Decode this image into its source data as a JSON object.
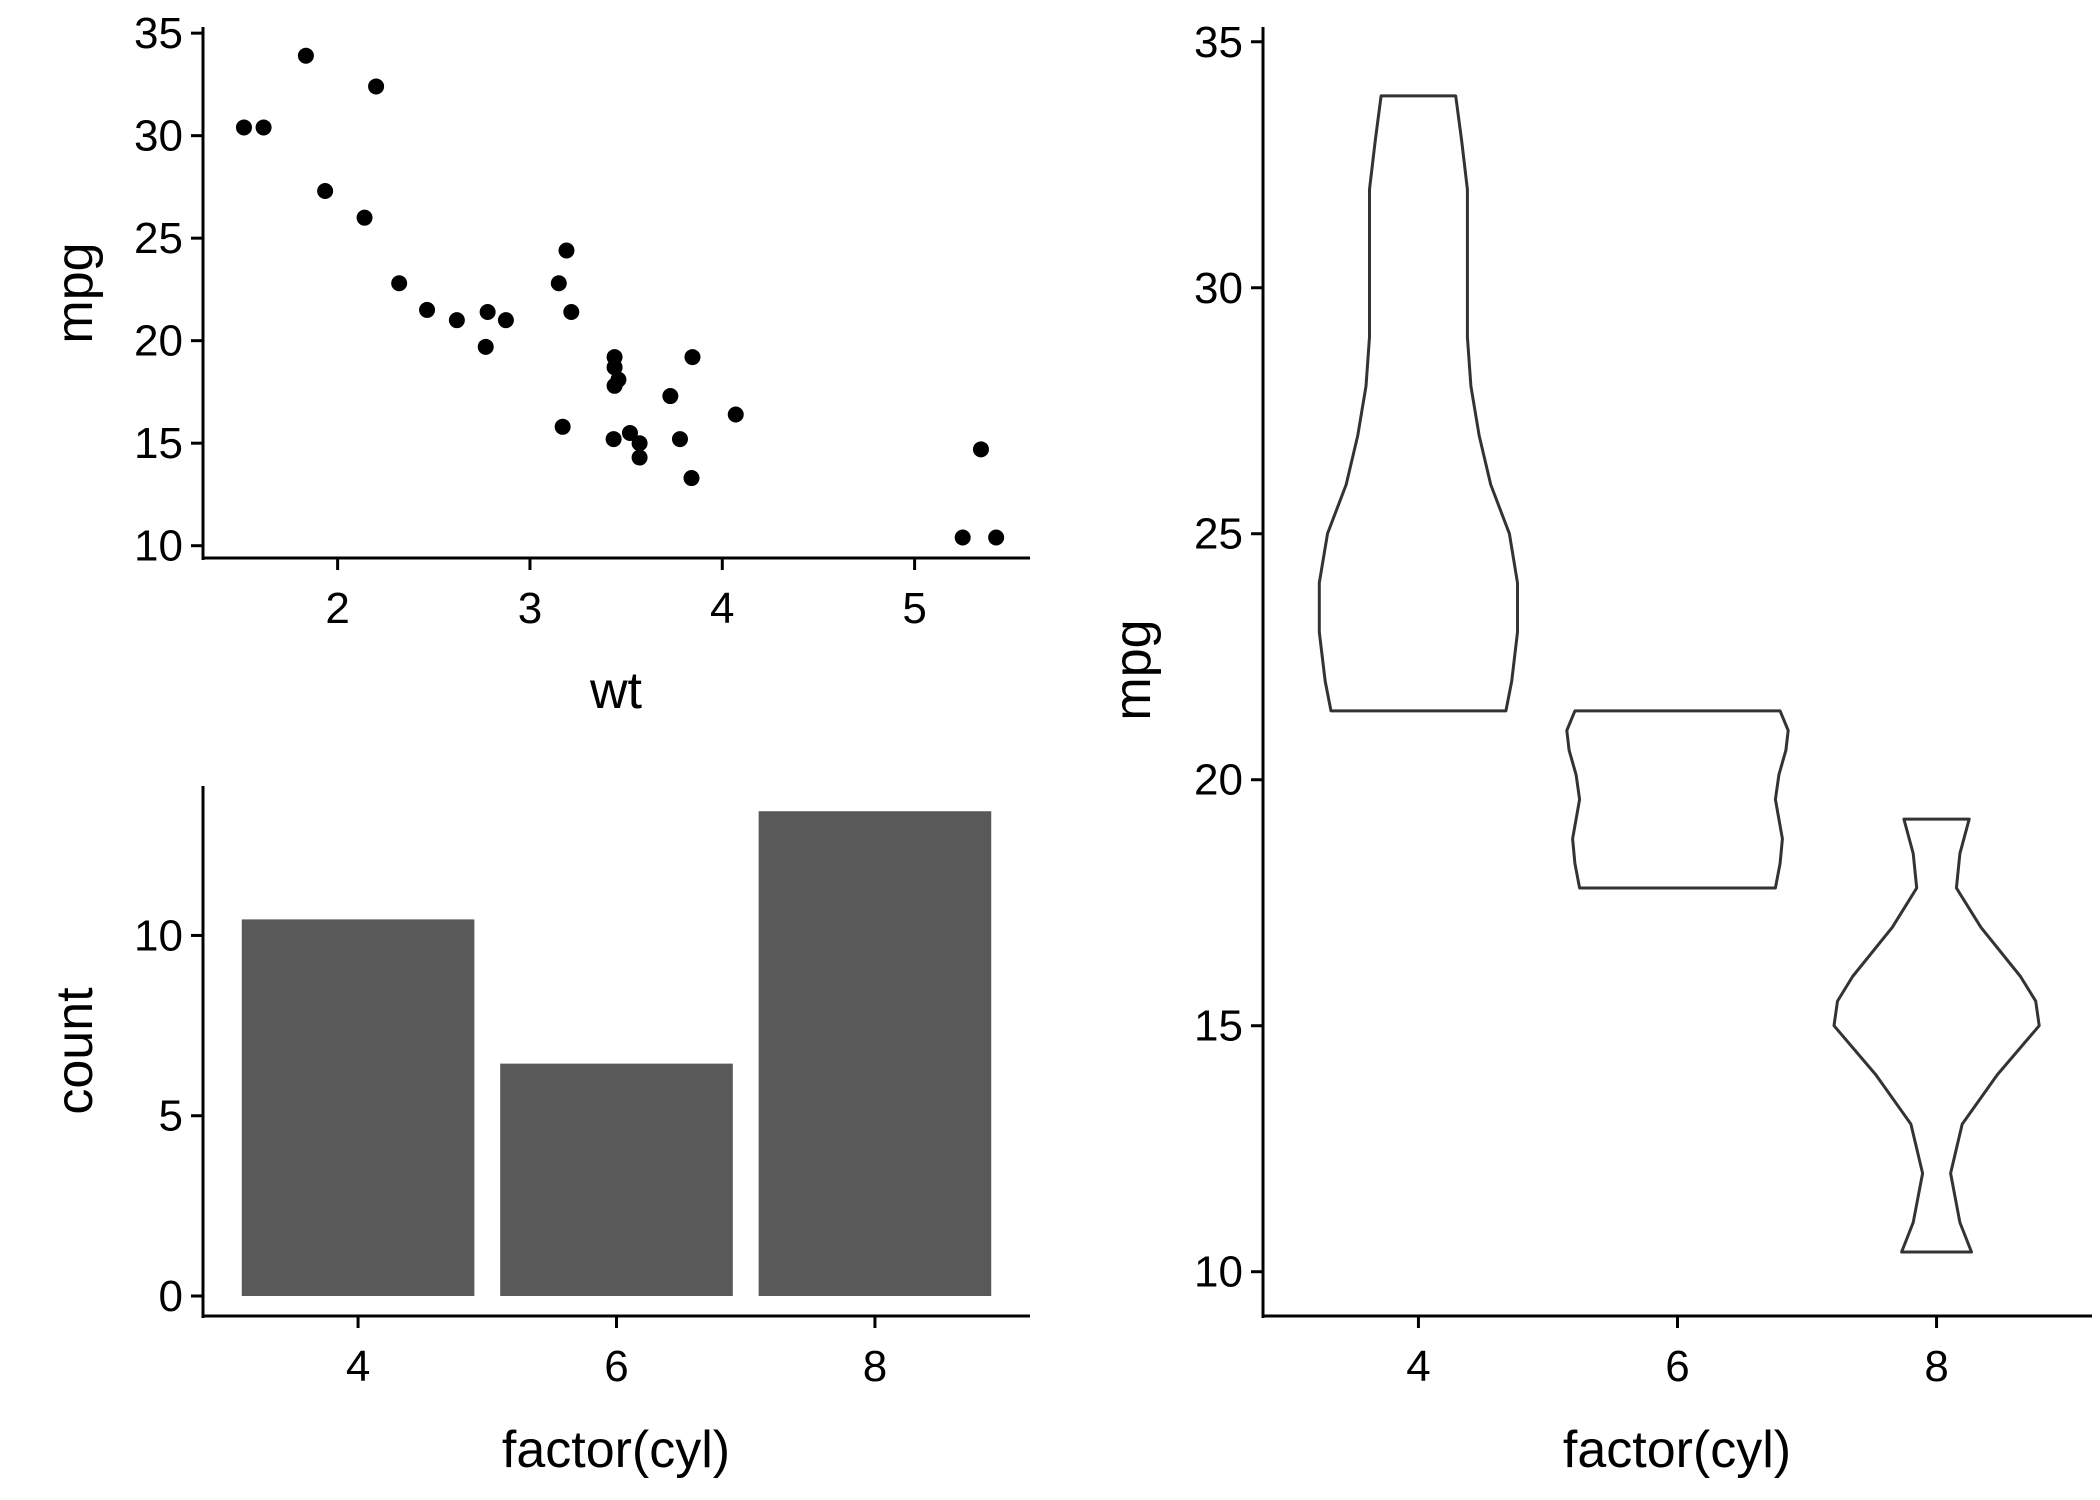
{
  "chart_data": [
    {
      "type": "scatter",
      "xlabel": "wt",
      "ylabel": "mpg",
      "xlim": [
        1.3,
        5.6
      ],
      "ylim": [
        9.4,
        35.3
      ],
      "xticks": [
        2,
        3,
        4,
        5
      ],
      "yticks": [
        10,
        15,
        20,
        25,
        30,
        35
      ],
      "grid": false,
      "color": "#000000",
      "points": [
        {
          "x": 2.62,
          "y": 21.0
        },
        {
          "x": 2.875,
          "y": 21.0
        },
        {
          "x": 2.32,
          "y": 22.8
        },
        {
          "x": 3.215,
          "y": 21.4
        },
        {
          "x": 3.44,
          "y": 18.7
        },
        {
          "x": 3.46,
          "y": 18.1
        },
        {
          "x": 3.57,
          "y": 14.3
        },
        {
          "x": 3.19,
          "y": 24.4
        },
        {
          "x": 3.15,
          "y": 22.8
        },
        {
          "x": 3.44,
          "y": 19.2
        },
        {
          "x": 3.44,
          "y": 17.8
        },
        {
          "x": 4.07,
          "y": 16.4
        },
        {
          "x": 3.73,
          "y": 17.3
        },
        {
          "x": 3.78,
          "y": 15.2
        },
        {
          "x": 5.25,
          "y": 10.4
        },
        {
          "x": 5.424,
          "y": 10.4
        },
        {
          "x": 5.345,
          "y": 14.7
        },
        {
          "x": 2.2,
          "y": 32.4
        },
        {
          "x": 1.615,
          "y": 30.4
        },
        {
          "x": 1.835,
          "y": 33.9
        },
        {
          "x": 2.465,
          "y": 21.5
        },
        {
          "x": 3.52,
          "y": 15.5
        },
        {
          "x": 3.435,
          "y": 15.2
        },
        {
          "x": 3.84,
          "y": 13.3
        },
        {
          "x": 3.845,
          "y": 19.2
        },
        {
          "x": 1.935,
          "y": 27.3
        },
        {
          "x": 2.14,
          "y": 26.0
        },
        {
          "x": 1.513,
          "y": 30.4
        },
        {
          "x": 3.17,
          "y": 15.8
        },
        {
          "x": 2.77,
          "y": 19.7
        },
        {
          "x": 3.57,
          "y": 15.0
        },
        {
          "x": 2.78,
          "y": 21.4
        }
      ]
    },
    {
      "type": "bar",
      "xlabel": "factor(cyl)",
      "ylabel": "count",
      "categories": [
        "4",
        "6",
        "8"
      ],
      "values": [
        11,
        7,
        14
      ],
      "ylim": [
        0,
        14.7
      ],
      "yticks": [
        0,
        5,
        10
      ],
      "grid": false,
      "color": "#595959"
    },
    {
      "type": "violin",
      "xlabel": "factor(cyl)",
      "ylabel": "mpg",
      "categories": [
        "4",
        "6",
        "8"
      ],
      "ylim": [
        9.1,
        35.3
      ],
      "yticks": [
        10,
        15,
        20,
        25,
        30,
        35
      ],
      "grid": false,
      "outline_color": "#333333",
      "violins": [
        {
          "category": "4",
          "min": 21.4,
          "max": 33.9,
          "profile": [
            [
              21.4,
              0.75
            ],
            [
              22,
              0.8
            ],
            [
              23,
              0.85
            ],
            [
              24,
              0.85
            ],
            [
              25,
              0.78
            ],
            [
              26,
              0.62
            ],
            [
              27,
              0.52
            ],
            [
              28,
              0.45
            ],
            [
              29,
              0.42
            ],
            [
              30,
              0.42
            ],
            [
              31,
              0.42
            ],
            [
              32,
              0.42
            ],
            [
              33,
              0.37
            ],
            [
              33.9,
              0.32
            ]
          ]
        },
        {
          "category": "6",
          "min": 17.8,
          "max": 21.4,
          "profile": [
            [
              17.8,
              0.84
            ],
            [
              18.3,
              0.88
            ],
            [
              18.8,
              0.9
            ],
            [
              19.2,
              0.87
            ],
            [
              19.6,
              0.84
            ],
            [
              20.1,
              0.87
            ],
            [
              20.6,
              0.93
            ],
            [
              21.0,
              0.95
            ],
            [
              21.4,
              0.88
            ]
          ]
        },
        {
          "category": "8",
          "min": 10.4,
          "max": 19.2,
          "profile": [
            [
              10.4,
              0.3
            ],
            [
              11,
              0.2
            ],
            [
              12,
              0.12
            ],
            [
              13,
              0.22
            ],
            [
              14,
              0.52
            ],
            [
              15,
              0.88
            ],
            [
              15.5,
              0.85
            ],
            [
              16,
              0.72
            ],
            [
              17,
              0.38
            ],
            [
              17.8,
              0.17
            ],
            [
              18.5,
              0.2
            ],
            [
              19.2,
              0.28
            ]
          ]
        }
      ]
    }
  ]
}
